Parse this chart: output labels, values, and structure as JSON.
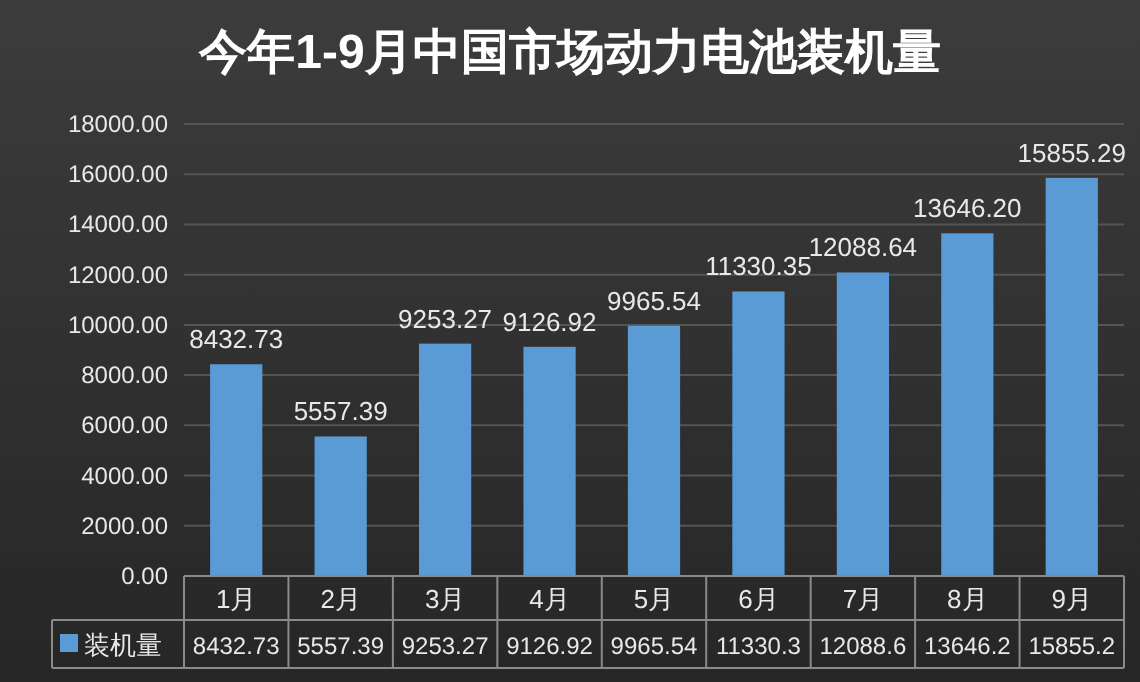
{
  "chart_data": {
    "type": "bar",
    "title": "今年1-9月中国市场动力电池装机量",
    "categories": [
      "1月",
      "2月",
      "3月",
      "4月",
      "5月",
      "6月",
      "7月",
      "8月",
      "9月"
    ],
    "series": [
      {
        "name": "装机量",
        "color": "#5b9bd5",
        "values": [
          8432.73,
          5557.39,
          9253.27,
          9126.92,
          9965.54,
          11330.35,
          12088.64,
          13646.2,
          15855.29
        ],
        "value_labels": [
          "8432.73",
          "5557.39",
          "9253.27",
          "9126.92",
          "9965.54",
          "11330.35",
          "12088.64",
          "13646.20",
          "15855.29"
        ]
      }
    ],
    "annotations": [
      "8432.73",
      "5557.39",
      "9253.27",
      "9126.92",
      "9965.54",
      "11330.3",
      "12088.6",
      "13646.2",
      "15855.2"
    ],
    "ylim": [
      0,
      18000
    ],
    "yticks": [
      {
        "value": 0,
        "label": "0.00"
      },
      {
        "value": 2000,
        "label": "2000.00"
      },
      {
        "value": 4000,
        "label": "4000.00"
      },
      {
        "value": 6000,
        "label": "6000.00"
      },
      {
        "value": 8000,
        "label": "8000.00"
      },
      {
        "value": 10000,
        "label": "10000.00"
      },
      {
        "value": 12000,
        "label": "12000.00"
      },
      {
        "value": 14000,
        "label": "14000.00"
      },
      {
        "value": 16000,
        "label": "16000.00"
      },
      {
        "value": 18000,
        "label": "18000.00"
      }
    ],
    "grid": "y",
    "legend": "bottom"
  }
}
